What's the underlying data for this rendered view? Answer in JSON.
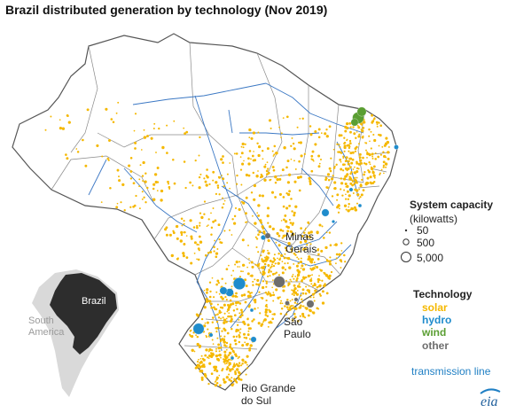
{
  "title": "Brazil distributed generation by technology (Nov 2019)",
  "colors": {
    "solar": "#f5b800",
    "hydro": "#1f8ccc",
    "wind": "#5a9e32",
    "other": "#6d6d6d",
    "transmission": "#3b78c4",
    "land": "#ffffff",
    "border": "#777777",
    "inset_land": "#d9d9d9",
    "inset_brazil": "#2d2d2d"
  },
  "labels": {
    "minas_gerais": "Minas\nGerais",
    "sao_paulo": "São\nPaulo",
    "rio_grande_do_sul": "Rio Grande\ndo Sul",
    "inset_brazil": "Brazil",
    "inset_south_america": "South\nAmerica"
  },
  "legend": {
    "capacity_title": "System capacity",
    "capacity_unit": "(kilowatts)",
    "sizes": [
      {
        "label": "50",
        "value": 50
      },
      {
        "label": "500",
        "value": 500
      },
      {
        "label": "5,000",
        "value": 5000
      }
    ],
    "technology_title": "Technology",
    "technologies": [
      {
        "key": "solar",
        "label": "solar"
      },
      {
        "key": "hydro",
        "label": "hydro"
      },
      {
        "key": "wind",
        "label": "wind"
      },
      {
        "key": "other",
        "label": "other"
      }
    ],
    "transmission_label": "transmission line"
  },
  "logo": "eia"
}
